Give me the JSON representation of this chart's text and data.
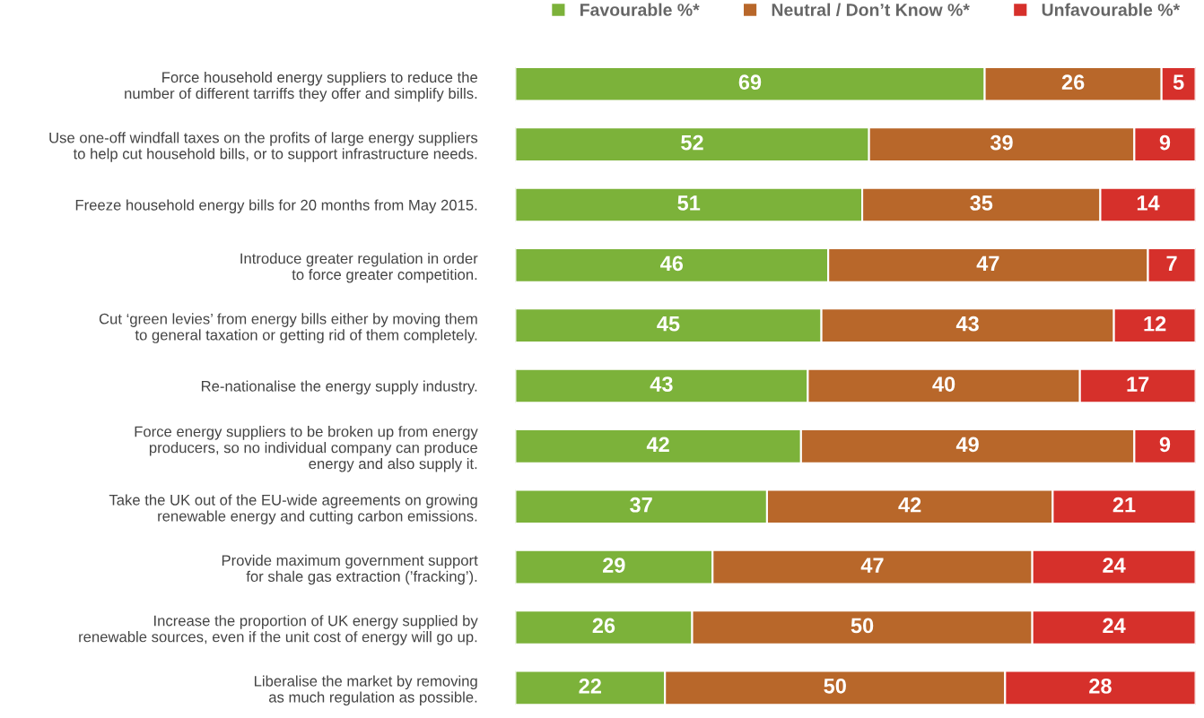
{
  "chart_data": {
    "type": "bar",
    "orientation": "horizontal",
    "stacked": true,
    "data_labels": true,
    "legend": "top right",
    "grid": false,
    "categories": [
      "Force household energy suppliers to reduce the\nnumber of different tarriffs they offer and simplify bills.",
      "Use one-off windfall taxes on the profits of large energy suppliers\nto help cut household bills, or to support infrastructure needs.",
      "Freeze household energy bills for 20 months from May 2015.",
      "Introduce greater regulation in order\nto force greater competition.",
      "Cut ‘green levies’ from energy bills either by moving them\nto general taxation or getting rid of them completely.",
      "Re-nationalise the energy supply industry.",
      "Force energy suppliers to be broken up from energy\nproducers, so no individual company can produce\nenergy and also supply it.",
      "Take the UK out of the EU-wide agreements on growing\nrenewable energy and cutting carbon emissions.",
      "Provide maximum government support\nfor shale gas extraction (’fracking’).",
      "Increase the proportion of UK energy supplied by\nrenewable sources, even if the unit cost of energy will go up.",
      "Liberalise the market by removing\nas much regulation as possible."
    ],
    "series": [
      {
        "name": "Favourable %*",
        "color": "#7cb23a",
        "values": [
          69,
          52,
          51,
          46,
          45,
          43,
          42,
          37,
          29,
          26,
          22
        ]
      },
      {
        "name": "Neutral / Don’t Know %*",
        "color": "#b8672a",
        "values": [
          26,
          39,
          35,
          47,
          43,
          40,
          49,
          42,
          47,
          50,
          50
        ]
      },
      {
        "name": "Unfavourable %*",
        "color": "#d6302b",
        "values": [
          5,
          9,
          14,
          7,
          12,
          17,
          9,
          21,
          24,
          24,
          28
        ]
      }
    ]
  }
}
